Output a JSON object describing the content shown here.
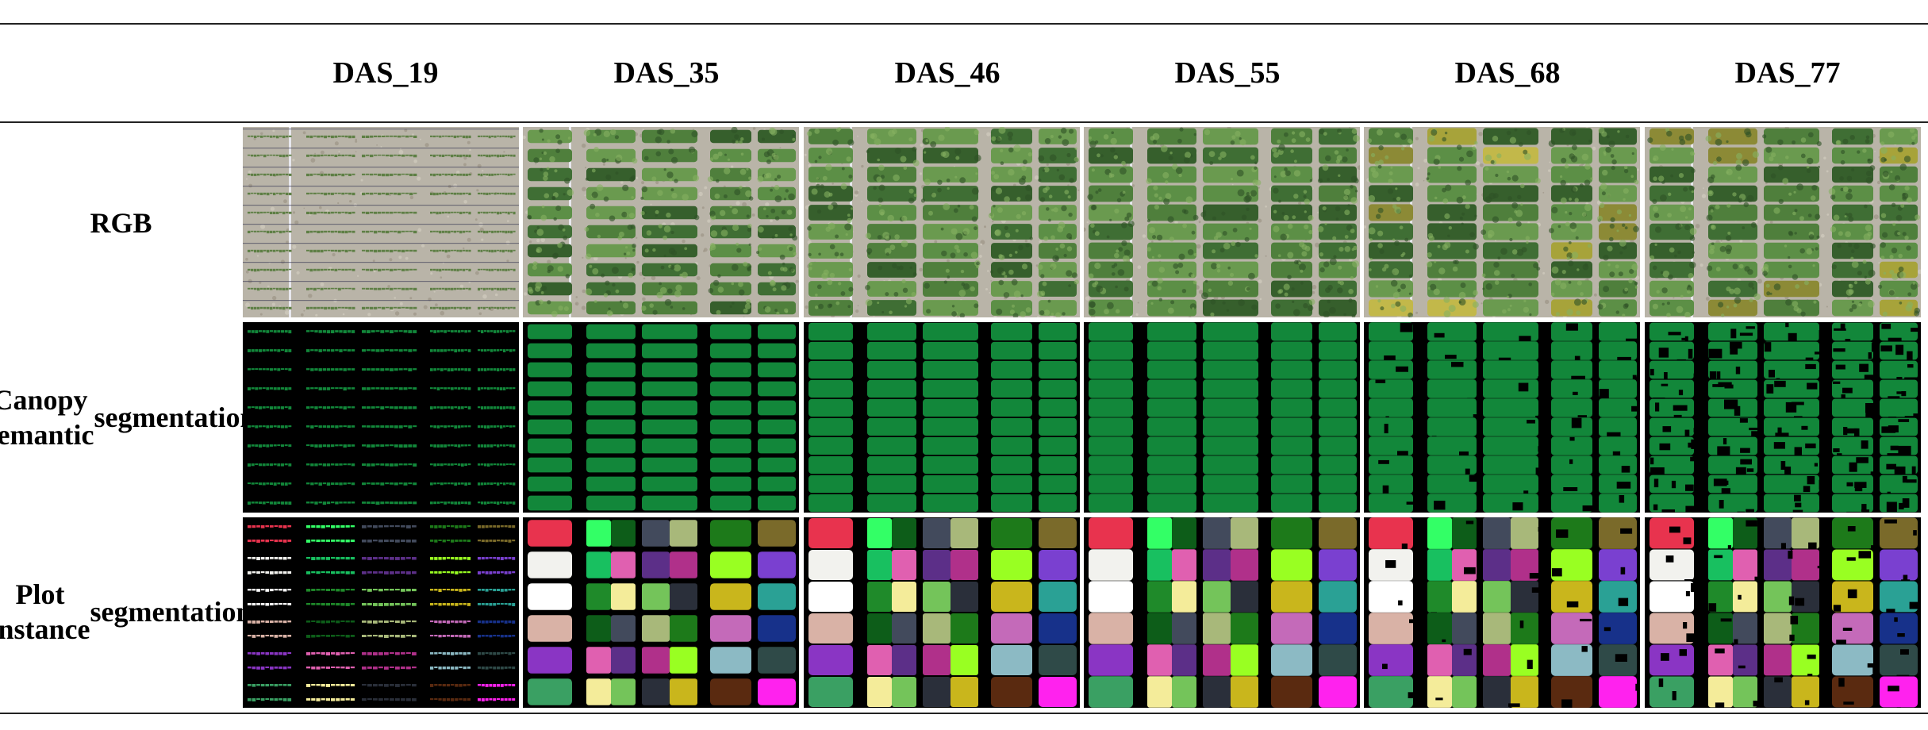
{
  "columns": [
    "DAS_19",
    "DAS_35",
    "DAS_46",
    "DAS_55",
    "DAS_68",
    "DAS_77"
  ],
  "rows": [
    {
      "key": "rgb",
      "label_lines": [
        "RGB"
      ]
    },
    {
      "key": "semantic",
      "label_lines": [
        "Canopy semantic",
        "segmentation"
      ]
    },
    {
      "key": "instance",
      "label_lines": [
        "Plot instance",
        "segmentation"
      ]
    }
  ],
  "colors": {
    "canopy_green": "#12873a",
    "background_black": "#000000",
    "soil": "#b7b2a6",
    "instance_palette": [
      "#e8334e",
      "#f2f2ee",
      "#ffffff",
      "#d9b2a6",
      "#8a35c4",
      "#3aa063",
      "#33ff66",
      "#18c060",
      "#1f8a2a",
      "#0d5d19",
      "#e060b0",
      "#f4ec9a",
      "#424a5c",
      "#5c2f88",
      "#74c45a",
      "#a8b87a",
      "#b0308a",
      "#2a2f3a",
      "#1d7a1a",
      "#99ff22",
      "#c9b61c",
      "#c46ab9",
      "#8cbac4",
      "#5a2a10",
      "#7a6a2a",
      "#7a40d0",
      "#2aa195",
      "#17318a",
      "#2f4a48",
      "#ff22ee",
      "#7080b8"
    ]
  }
}
